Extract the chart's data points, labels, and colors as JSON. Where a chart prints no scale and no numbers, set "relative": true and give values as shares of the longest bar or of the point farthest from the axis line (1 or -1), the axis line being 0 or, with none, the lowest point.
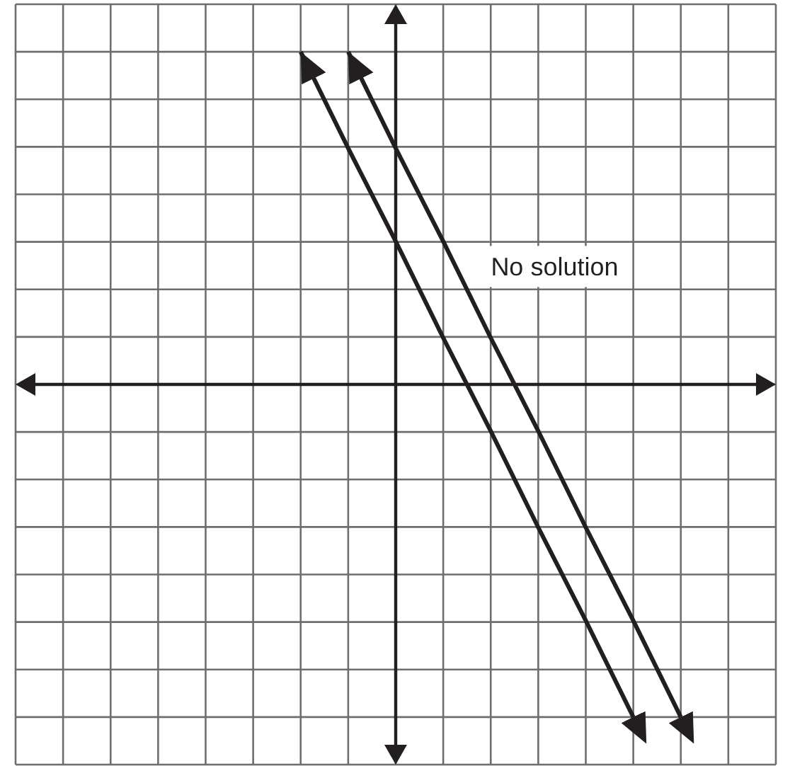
{
  "chart_data": {
    "type": "line",
    "relative": true,
    "grid": true,
    "categories": [
      null,
      null,
      null,
      null,
      null,
      null,
      null,
      null,
      null,
      null,
      null,
      null,
      null,
      null,
      null,
      null,
      null
    ],
    "series": [
      {
        "color": "#231f20",
        "values": [
          null,
          null,
          null,
          null,
          null,
          null,
          1,
          0.71,
          0.43,
          0.14,
          -0.14,
          -0.43,
          -0.71,
          -1,
          null,
          null,
          null
        ]
      },
      {
        "color": "#231f20",
        "values": [
          null,
          null,
          null,
          null,
          null,
          null,
          null,
          1,
          0.71,
          0.43,
          0.14,
          -0.14,
          -0.43,
          -0.71,
          -1,
          null,
          null
        ]
      }
    ],
    "annotations": [
      "No solution"
    ]
  }
}
